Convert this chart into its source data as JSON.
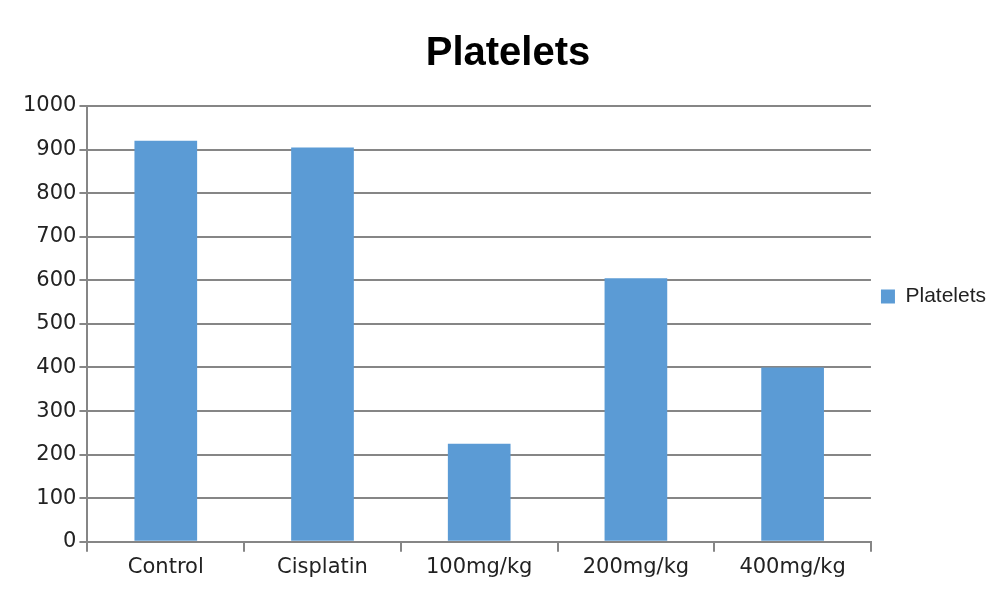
{
  "chart_data": {
    "type": "bar",
    "title": "Platelets",
    "categories": [
      "Control",
      "Cisplatin",
      "100mg/kg",
      "200mg/kg",
      "400mg/kg"
    ],
    "series": [
      {
        "name": "Platelets",
        "color": "#5b9bd5",
        "values": [
          920,
          905,
          225,
          605,
          400
        ]
      }
    ],
    "ylim": [
      0,
      1000
    ],
    "yticks": [
      0,
      100,
      200,
      300,
      400,
      500,
      600,
      700,
      800,
      900,
      1000
    ],
    "grid": "y",
    "legend": "right"
  }
}
